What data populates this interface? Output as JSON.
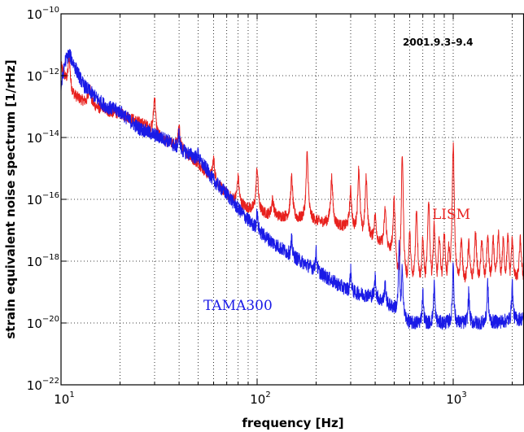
{
  "chart_data": {
    "type": "line",
    "title": "",
    "annotation": "2001.9.3–9.4",
    "xlabel": "frequency [Hz]",
    "ylabel": "strain equivalent noise spectrum [1/rHz]",
    "xscale": "log",
    "yscale": "log",
    "xlim": [
      10,
      2500
    ],
    "ylim": [
      1e-22,
      1e-10
    ],
    "grid": true,
    "x_ticks": [
      {
        "base": "10",
        "exp": "1",
        "value": 10
      },
      {
        "base": "10",
        "exp": "2",
        "value": 100
      },
      {
        "base": "10",
        "exp": "3",
        "value": 1000
      }
    ],
    "y_ticks": [
      {
        "base": "10",
        "exp": "−10",
        "value": 1e-10
      },
      {
        "base": "10",
        "exp": "−12",
        "value": 1e-12
      },
      {
        "base": "10",
        "exp": "−14",
        "value": 1e-14
      },
      {
        "base": "10",
        "exp": "−16",
        "value": 1e-16
      },
      {
        "base": "10",
        "exp": "−18",
        "value": 1e-18
      },
      {
        "base": "10",
        "exp": "−20",
        "value": 1e-20
      },
      {
        "base": "10",
        "exp": "−22",
        "value": 1e-22
      }
    ],
    "series": [
      {
        "name": "LISM",
        "color": "#e8211e",
        "x": [
          10,
          11,
          12,
          13,
          15,
          17,
          20,
          23,
          27,
          30,
          35,
          40,
          45,
          50,
          55,
          60,
          70,
          80,
          100,
          120,
          150,
          200,
          250,
          300,
          400,
          500,
          530,
          600,
          800,
          1000,
          1500,
          2000,
          2500
        ],
        "y": [
          2e-12,
          3e-13,
          2e-13,
          1.5e-13,
          1e-13,
          7e-14,
          6e-14,
          4e-14,
          2.5e-14,
          1.2e-14,
          7e-15,
          5e-15,
          2.5e-15,
          1.5e-15,
          7e-16,
          4e-16,
          1.5e-16,
          7e-17,
          4e-17,
          3e-17,
          2.5e-17,
          2e-17,
          1.5e-17,
          1.2e-17,
          5e-18,
          1.5e-18,
          2e-19,
          2e-19,
          2e-19,
          2.2e-19,
          2.2e-19,
          2.2e-19,
          2.2e-19
        ],
        "peaks": [
          {
            "f": 11,
            "y": 4e-12
          },
          {
            "f": 14,
            "y": 5e-13
          },
          {
            "f": 16.5,
            "y": 1e-13
          },
          {
            "f": 25,
            "y": 1.5e-14
          },
          {
            "f": 30,
            "y": 2e-13
          },
          {
            "f": 40,
            "y": 2e-14
          },
          {
            "f": 50,
            "y": 1e-15
          },
          {
            "f": 60,
            "y": 2e-15
          },
          {
            "f": 80,
            "y": 5e-16
          },
          {
            "f": 100,
            "y": 1e-15
          },
          {
            "f": 120,
            "y": 1e-16
          },
          {
            "f": 150,
            "y": 5e-16
          },
          {
            "f": 180,
            "y": 3e-15
          },
          {
            "f": 240,
            "y": 5e-16
          },
          {
            "f": 300,
            "y": 2e-16
          },
          {
            "f": 330,
            "y": 1e-15
          },
          {
            "f": 360,
            "y": 5e-16
          },
          {
            "f": 400,
            "y": 3e-17
          },
          {
            "f": 450,
            "y": 5e-17
          },
          {
            "f": 500,
            "y": 1e-16
          },
          {
            "f": 550,
            "y": 3e-15
          },
          {
            "f": 600,
            "y": 8e-18
          },
          {
            "f": 650,
            "y": 5e-17
          },
          {
            "f": 700,
            "y": 5e-18
          },
          {
            "f": 750,
            "y": 1e-16
          },
          {
            "f": 800,
            "y": 1.5e-17
          },
          {
            "f": 850,
            "y": 6e-18
          },
          {
            "f": 900,
            "y": 8e-18
          },
          {
            "f": 950,
            "y": 3e-18
          },
          {
            "f": 1000,
            "y": 6e-15
          },
          {
            "f": 1100,
            "y": 5e-18
          },
          {
            "f": 1200,
            "y": 4e-18
          },
          {
            "f": 1300,
            "y": 8e-18
          },
          {
            "f": 1400,
            "y": 5e-18
          },
          {
            "f": 1500,
            "y": 6e-18
          },
          {
            "f": 1600,
            "y": 5e-18
          },
          {
            "f": 1700,
            "y": 8e-18
          },
          {
            "f": 1800,
            "y": 5e-18
          },
          {
            "f": 1900,
            "y": 6e-18
          },
          {
            "f": 2000,
            "y": 5e-18
          },
          {
            "f": 2200,
            "y": 5e-18
          },
          {
            "f": 2400,
            "y": 6e-18
          }
        ]
      },
      {
        "name": "TAMA300",
        "color": "#1a1ae6",
        "x": [
          10,
          10.5,
          11,
          12,
          13,
          15,
          17,
          20,
          23,
          25,
          30,
          35,
          40,
          45,
          50,
          55,
          60,
          70,
          80,
          100,
          120,
          150,
          200,
          250,
          300,
          400,
          500,
          600,
          800,
          1000,
          1500,
          2000,
          2500
        ],
        "y": [
          4e-13,
          3e-12,
          5e-12,
          1.5e-12,
          5e-13,
          2e-13,
          1e-13,
          7e-14,
          3e-14,
          2e-14,
          1.2e-14,
          8e-15,
          4e-15,
          3e-15,
          2e-15,
          1e-15,
          4e-16,
          1.5e-16,
          5e-17,
          1e-17,
          4e-18,
          1.5e-18,
          5e-19,
          2e-19,
          1e-19,
          7e-20,
          3e-20,
          1e-20,
          1e-20,
          1e-20,
          1e-20,
          1.2e-20,
          1.5e-20
        ],
        "peaks": [
          {
            "f": 40,
            "y": 1.5e-14
          },
          {
            "f": 50,
            "y": 3e-15
          },
          {
            "f": 100,
            "y": 4e-17
          },
          {
            "f": 150,
            "y": 5e-18
          },
          {
            "f": 200,
            "y": 2e-18
          },
          {
            "f": 300,
            "y": 5e-19
          },
          {
            "f": 400,
            "y": 3e-19
          },
          {
            "f": 450,
            "y": 2e-19
          },
          {
            "f": 530,
            "y": 4e-18
          },
          {
            "f": 550,
            "y": 8e-19
          },
          {
            "f": 700,
            "y": 1e-19
          },
          {
            "f": 800,
            "y": 2e-19
          },
          {
            "f": 1000,
            "y": 1e-18
          },
          {
            "f": 1200,
            "y": 1e-19
          },
          {
            "f": 1500,
            "y": 2e-19
          },
          {
            "f": 2000,
            "y": 2e-19
          }
        ]
      }
    ]
  }
}
